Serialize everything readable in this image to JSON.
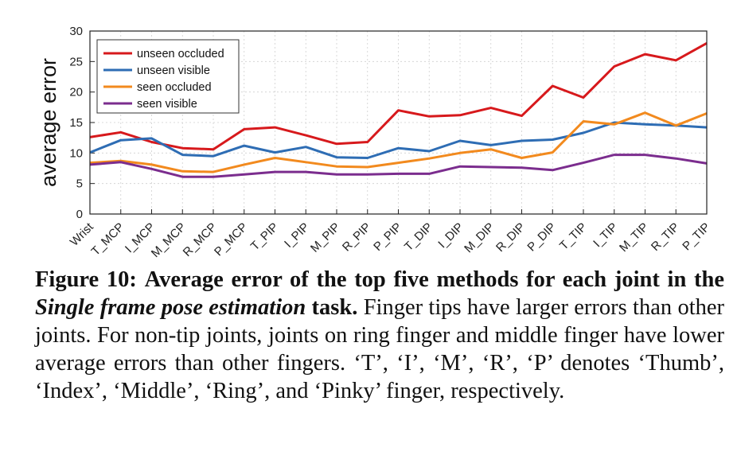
{
  "chart_data": {
    "type": "line",
    "title": "",
    "xlabel": "",
    "ylabel": "average error",
    "ylim": [
      0,
      30
    ],
    "yticks": [
      0,
      5,
      10,
      15,
      20,
      25,
      30
    ],
    "grid": true,
    "legend_position": "top-left",
    "categories": [
      "Wrist",
      "T_MCP",
      "I_MCP",
      "M_MCP",
      "R_MCP",
      "P_MCP",
      "T_PIP",
      "I_PIP",
      "M_PIP",
      "R_PIP",
      "P_PIP",
      "T_DIP",
      "I_DIP",
      "M_DIP",
      "R_DIP",
      "P_DIP",
      "T_TIP",
      "I_TIP",
      "M_TIP",
      "R_TIP",
      "P_TIP"
    ],
    "series": [
      {
        "name": "unseen occluded",
        "color": "#d7191c",
        "values": [
          12.6,
          13.4,
          11.8,
          10.8,
          10.6,
          13.9,
          14.2,
          12.9,
          11.5,
          11.8,
          17.0,
          16.0,
          16.2,
          17.4,
          16.1,
          21.0,
          19.1,
          24.2,
          26.2,
          25.2,
          28.0
        ]
      },
      {
        "name": "unseen visible",
        "color": "#2e6db4",
        "values": [
          10.1,
          12.1,
          12.4,
          9.7,
          9.5,
          11.2,
          10.1,
          11.0,
          9.3,
          9.2,
          10.8,
          10.3,
          12.0,
          11.3,
          12.0,
          12.2,
          13.3,
          15.0,
          14.7,
          14.5,
          14.2
        ]
      },
      {
        "name": "seen occluded",
        "color": "#f28a1e",
        "values": [
          8.4,
          8.7,
          8.1,
          7.0,
          6.9,
          8.1,
          9.2,
          8.5,
          7.8,
          7.7,
          8.4,
          9.1,
          10.0,
          10.6,
          9.2,
          10.1,
          15.2,
          14.7,
          16.6,
          14.5,
          16.5
        ]
      },
      {
        "name": "seen visible",
        "color": "#7b2d8e",
        "values": [
          8.1,
          8.5,
          7.4,
          6.1,
          6.1,
          6.5,
          6.9,
          6.9,
          6.5,
          6.5,
          6.6,
          6.6,
          7.8,
          7.7,
          7.6,
          7.2,
          8.4,
          9.7,
          9.7,
          9.1,
          8.3
        ]
      }
    ]
  },
  "caption": {
    "label": "Figure 10:",
    "bold_part1": "Average error of the top five methods for each joint in the",
    "italic_bold": "Single frame pose estimation",
    "bold_part2": "task.",
    "body": "Finger tips have larger errors than other joints.  For non-tip joints, joints on ring finger and middle finger have lower average errors than other fingers. ‘T’, ‘I’, ‘M’, ‘R’, ‘P’ denotes ‘Thumb’, ‘Index’, ‘Middle’, ‘Ring’, and ‘Pinky’ finger, respectively."
  }
}
